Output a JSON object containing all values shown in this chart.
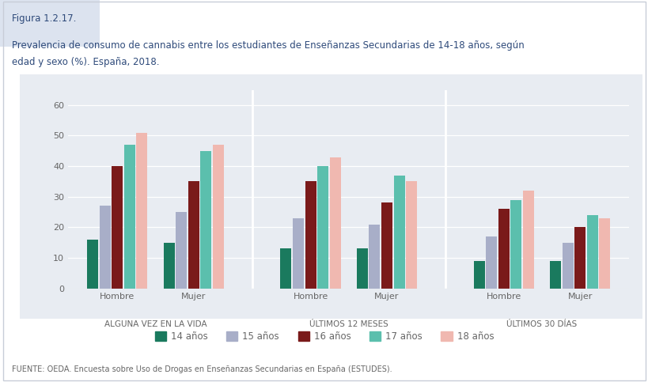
{
  "figure_label": "Figura 1.2.17.",
  "subtitle_line1": "Prevalencia de consumo de cannabis entre los estudiantes de Enseñanzas Secundarias de 14-18 años, según",
  "subtitle_line2": "edad y sexo (%). España, 2018.",
  "source": "FUENTE: OEDA. Encuesta sobre Uso de Drogas en Enseñanzas Secundarias en España (ESTUDES).",
  "groups": [
    "ALGUNA VEZ EN LA VIDA",
    "ÚLTIMOS 12 MESES",
    "ÚLTIMOS 30 DÍAS"
  ],
  "subgroups": [
    "Hombre",
    "Mujer"
  ],
  "ages": [
    "14 años",
    "15 años",
    "16 años",
    "17 años",
    "18 años"
  ],
  "colors": [
    "#1a7a5e",
    "#a8aec8",
    "#7a1a1a",
    "#5bbfad",
    "#f0b8b0"
  ],
  "data": {
    "ALGUNA VEZ EN LA VIDA": {
      "Hombre": [
        16,
        27,
        40,
        47,
        51
      ],
      "Mujer": [
        15,
        25,
        35,
        45,
        47
      ]
    },
    "ÚLTIMOS 12 MESES": {
      "Hombre": [
        13,
        23,
        35,
        40,
        43
      ],
      "Mujer": [
        13,
        21,
        28,
        37,
        35
      ]
    },
    "ÚLTIMOS 30 DÍAS": {
      "Hombre": [
        9,
        17,
        26,
        29,
        32
      ],
      "Mujer": [
        9,
        15,
        20,
        24,
        23
      ]
    }
  },
  "ylim": [
    0,
    65
  ],
  "yticks": [
    0,
    10,
    20,
    30,
    40,
    50,
    60
  ],
  "plot_bg": "#e8ecf2",
  "outer_bg": "#ffffff",
  "header_bg": "#dce3ef",
  "text_color": "#2e4a7a",
  "tick_color": "#666666",
  "border_color": "#c8cdd8"
}
